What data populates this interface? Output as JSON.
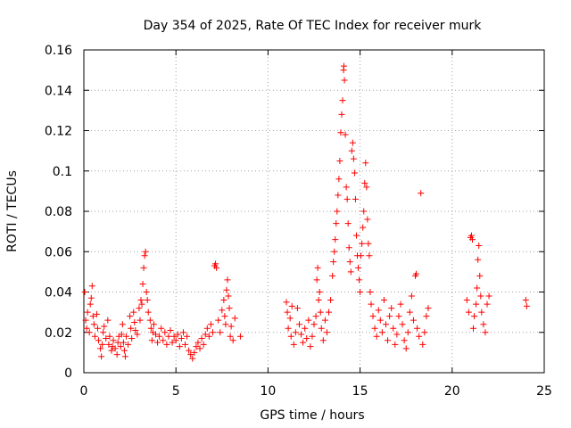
{
  "chart_data": {
    "type": "scatter",
    "title": "Day 354 of 2025, Rate Of TEC Index for receiver murk",
    "xlabel": "GPS time / hours",
    "ylabel": "ROTI / TECUs",
    "xlim": [
      0,
      25
    ],
    "ylim": [
      0,
      0.16
    ],
    "x_ticks": [
      "0",
      "5",
      "10",
      "15",
      "20",
      "25"
    ],
    "y_ticks": [
      "0",
      "0.02",
      "0.04",
      "0.06",
      "0.08",
      "0.1",
      "0.12",
      "0.14",
      "0.16"
    ],
    "grid": true,
    "marker": "+",
    "color": "#ff0000",
    "series": [
      {
        "points": [
          [
            0.05,
            0.04
          ],
          [
            0.1,
            0.026
          ],
          [
            0.15,
            0.022
          ],
          [
            0.2,
            0.03
          ],
          [
            0.3,
            0.02
          ],
          [
            0.35,
            0.034
          ],
          [
            0.4,
            0.037
          ],
          [
            0.45,
            0.043
          ],
          [
            0.5,
            0.028
          ],
          [
            0.55,
            0.024
          ],
          [
            0.6,
            0.018
          ],
          [
            0.7,
            0.029
          ],
          [
            0.75,
            0.022
          ],
          [
            0.8,
            0.016
          ],
          [
            0.9,
            0.012
          ],
          [
            0.95,
            0.008
          ],
          [
            1.0,
            0.014
          ],
          [
            1.05,
            0.02
          ],
          [
            1.1,
            0.023
          ],
          [
            1.2,
            0.017
          ],
          [
            1.3,
            0.026
          ],
          [
            1.35,
            0.014
          ],
          [
            1.4,
            0.018
          ],
          [
            1.5,
            0.011
          ],
          [
            1.55,
            0.013
          ],
          [
            1.6,
            0.016
          ],
          [
            1.7,
            0.012
          ],
          [
            1.8,
            0.009
          ],
          [
            1.85,
            0.015
          ],
          [
            1.9,
            0.018
          ],
          [
            2.0,
            0.013
          ],
          [
            2.05,
            0.019
          ],
          [
            2.1,
            0.024
          ],
          [
            2.15,
            0.015
          ],
          [
            2.2,
            0.011
          ],
          [
            2.25,
            0.008
          ],
          [
            2.3,
            0.018
          ],
          [
            2.4,
            0.014
          ],
          [
            2.5,
            0.028
          ],
          [
            2.55,
            0.022
          ],
          [
            2.6,
            0.017
          ],
          [
            2.7,
            0.03
          ],
          [
            2.75,
            0.025
          ],
          [
            2.8,
            0.021
          ],
          [
            2.9,
            0.019
          ],
          [
            3.0,
            0.032
          ],
          [
            3.05,
            0.026
          ],
          [
            3.1,
            0.036
          ],
          [
            3.15,
            0.034
          ],
          [
            3.2,
            0.044
          ],
          [
            3.25,
            0.052
          ],
          [
            3.3,
            0.058
          ],
          [
            3.35,
            0.06
          ],
          [
            3.4,
            0.04
          ],
          [
            3.45,
            0.036
          ],
          [
            3.5,
            0.03
          ],
          [
            3.6,
            0.026
          ],
          [
            3.65,
            0.022
          ],
          [
            3.7,
            0.016
          ],
          [
            3.75,
            0.02
          ],
          [
            3.8,
            0.024
          ],
          [
            3.9,
            0.019
          ],
          [
            4.0,
            0.015
          ],
          [
            4.1,
            0.018
          ],
          [
            4.2,
            0.022
          ],
          [
            4.3,
            0.016
          ],
          [
            4.4,
            0.02
          ],
          [
            4.5,
            0.014
          ],
          [
            4.6,
            0.018
          ],
          [
            4.7,
            0.021
          ],
          [
            4.8,
            0.015
          ],
          [
            4.9,
            0.018
          ],
          [
            5.0,
            0.016
          ],
          [
            5.1,
            0.019
          ],
          [
            5.2,
            0.013
          ],
          [
            5.3,
            0.017
          ],
          [
            5.4,
            0.02
          ],
          [
            5.5,
            0.014
          ],
          [
            5.6,
            0.018
          ],
          [
            5.7,
            0.011
          ],
          [
            5.8,
            0.009
          ],
          [
            5.9,
            0.007
          ],
          [
            6.0,
            0.01
          ],
          [
            6.1,
            0.013
          ],
          [
            6.2,
            0.015
          ],
          [
            6.3,
            0.012
          ],
          [
            6.4,
            0.017
          ],
          [
            6.5,
            0.014
          ],
          [
            6.6,
            0.019
          ],
          [
            6.7,
            0.022
          ],
          [
            6.8,
            0.018
          ],
          [
            6.9,
            0.024
          ],
          [
            7.0,
            0.02
          ],
          [
            7.1,
            0.053
          ],
          [
            7.15,
            0.054
          ],
          [
            7.2,
            0.052
          ],
          [
            7.3,
            0.026
          ],
          [
            7.4,
            0.02
          ],
          [
            7.5,
            0.031
          ],
          [
            7.6,
            0.036
          ],
          [
            7.65,
            0.028
          ],
          [
            7.7,
            0.024
          ],
          [
            7.75,
            0.041
          ],
          [
            7.8,
            0.046
          ],
          [
            7.85,
            0.038
          ],
          [
            7.9,
            0.032
          ],
          [
            7.95,
            0.018
          ],
          [
            8.0,
            0.023
          ],
          [
            8.1,
            0.016
          ],
          [
            8.2,
            0.027
          ],
          [
            8.5,
            0.018
          ],
          [
            11.0,
            0.035
          ],
          [
            11.05,
            0.03
          ],
          [
            11.1,
            0.022
          ],
          [
            11.2,
            0.027
          ],
          [
            11.25,
            0.018
          ],
          [
            11.3,
            0.033
          ],
          [
            11.4,
            0.014
          ],
          [
            11.5,
            0.02
          ],
          [
            11.6,
            0.032
          ],
          [
            11.7,
            0.024
          ],
          [
            11.8,
            0.019
          ],
          [
            11.9,
            0.015
          ],
          [
            12.0,
            0.022
          ],
          [
            12.1,
            0.017
          ],
          [
            12.2,
            0.026
          ],
          [
            12.3,
            0.013
          ],
          [
            12.4,
            0.018
          ],
          [
            12.5,
            0.024
          ],
          [
            12.6,
            0.028
          ],
          [
            12.65,
            0.046
          ],
          [
            12.7,
            0.052
          ],
          [
            12.75,
            0.036
          ],
          [
            12.8,
            0.04
          ],
          [
            12.85,
            0.03
          ],
          [
            12.9,
            0.022
          ],
          [
            13.0,
            0.016
          ],
          [
            13.1,
            0.026
          ],
          [
            13.2,
            0.02
          ],
          [
            13.3,
            0.03
          ],
          [
            13.4,
            0.036
          ],
          [
            13.5,
            0.048
          ],
          [
            13.55,
            0.055
          ],
          [
            13.6,
            0.06
          ],
          [
            13.65,
            0.066
          ],
          [
            13.7,
            0.074
          ],
          [
            13.75,
            0.08
          ],
          [
            13.8,
            0.088
          ],
          [
            13.85,
            0.096
          ],
          [
            13.9,
            0.105
          ],
          [
            13.95,
            0.119
          ],
          [
            14.0,
            0.128
          ],
          [
            14.05,
            0.135
          ],
          [
            14.1,
            0.15
          ],
          [
            14.12,
            0.152
          ],
          [
            14.15,
            0.145
          ],
          [
            14.2,
            0.118
          ],
          [
            14.25,
            0.092
          ],
          [
            14.3,
            0.086
          ],
          [
            14.35,
            0.074
          ],
          [
            14.4,
            0.062
          ],
          [
            14.45,
            0.055
          ],
          [
            14.5,
            0.05
          ],
          [
            14.55,
            0.11
          ],
          [
            14.6,
            0.114
          ],
          [
            14.65,
            0.106
          ],
          [
            14.7,
            0.099
          ],
          [
            14.75,
            0.086
          ],
          [
            14.8,
            0.068
          ],
          [
            14.85,
            0.058
          ],
          [
            14.9,
            0.052
          ],
          [
            14.95,
            0.046
          ],
          [
            15.0,
            0.04
          ],
          [
            15.05,
            0.058
          ],
          [
            15.1,
            0.064
          ],
          [
            15.15,
            0.072
          ],
          [
            15.2,
            0.08
          ],
          [
            15.25,
            0.094
          ],
          [
            15.3,
            0.104
          ],
          [
            15.35,
            0.092
          ],
          [
            15.4,
            0.076
          ],
          [
            15.45,
            0.064
          ],
          [
            15.5,
            0.058
          ],
          [
            15.55,
            0.04
          ],
          [
            15.6,
            0.034
          ],
          [
            15.7,
            0.028
          ],
          [
            15.8,
            0.022
          ],
          [
            15.9,
            0.018
          ],
          [
            16.0,
            0.031
          ],
          [
            16.1,
            0.026
          ],
          [
            16.2,
            0.02
          ],
          [
            16.3,
            0.036
          ],
          [
            16.4,
            0.024
          ],
          [
            16.5,
            0.016
          ],
          [
            16.6,
            0.028
          ],
          [
            16.7,
            0.032
          ],
          [
            16.8,
            0.022
          ],
          [
            16.9,
            0.014
          ],
          [
            17.0,
            0.019
          ],
          [
            17.1,
            0.028
          ],
          [
            17.2,
            0.034
          ],
          [
            17.3,
            0.024
          ],
          [
            17.4,
            0.016
          ],
          [
            17.5,
            0.012
          ],
          [
            17.6,
            0.02
          ],
          [
            17.7,
            0.03
          ],
          [
            17.8,
            0.038
          ],
          [
            17.9,
            0.026
          ],
          [
            18.0,
            0.048
          ],
          [
            18.05,
            0.049
          ],
          [
            18.1,
            0.022
          ],
          [
            18.2,
            0.018
          ],
          [
            18.3,
            0.089
          ],
          [
            18.4,
            0.014
          ],
          [
            18.5,
            0.02
          ],
          [
            18.6,
            0.028
          ],
          [
            18.7,
            0.032
          ],
          [
            20.8,
            0.036
          ],
          [
            20.9,
            0.03
          ],
          [
            21.0,
            0.067
          ],
          [
            21.05,
            0.068
          ],
          [
            21.1,
            0.066
          ],
          [
            21.15,
            0.022
          ],
          [
            21.2,
            0.028
          ],
          [
            21.3,
            0.034
          ],
          [
            21.35,
            0.042
          ],
          [
            21.4,
            0.056
          ],
          [
            21.45,
            0.063
          ],
          [
            21.5,
            0.048
          ],
          [
            21.55,
            0.038
          ],
          [
            21.6,
            0.03
          ],
          [
            21.7,
            0.024
          ],
          [
            21.8,
            0.02
          ],
          [
            21.9,
            0.034
          ],
          [
            22.0,
            0.038
          ],
          [
            24.0,
            0.036
          ],
          [
            24.05,
            0.033
          ]
        ]
      }
    ]
  }
}
